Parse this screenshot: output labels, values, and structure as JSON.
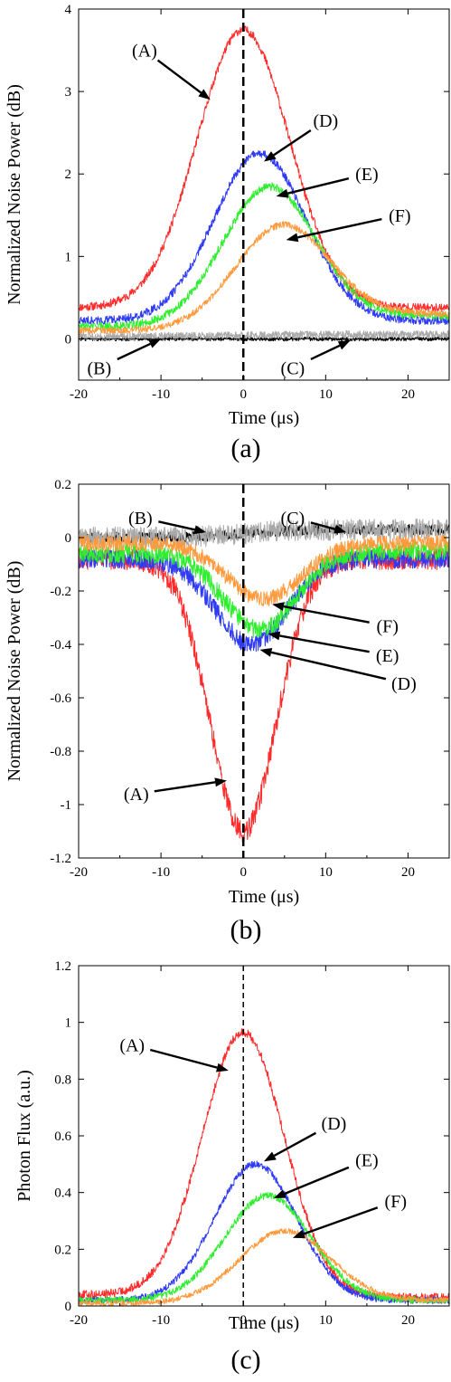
{
  "chart_data": [
    {
      "type": "line",
      "panel_label": "(a)",
      "xlabel": "Time (μs)",
      "ylabel": "Normalized Noise Power (dB)",
      "xlim": [
        -20,
        25
      ],
      "ylim": [
        -0.5,
        4
      ],
      "xticks": [
        -20,
        -10,
        0,
        10,
        20
      ],
      "yticks": [
        0,
        1,
        2,
        3,
        4
      ],
      "ytick_labels": [
        "0",
        "1",
        "2",
        "3",
        "4"
      ],
      "vline": 0,
      "series": [
        {
          "label": "(A)",
          "color": "#ff2a2a",
          "curve": {
            "kind": "gauss",
            "base_left": 0.38,
            "base_right": 0.38,
            "amp": 3.37,
            "center": 0,
            "sigma": 5.6,
            "noise": 0.05
          }
        },
        {
          "label": "(B)",
          "color": "#000000",
          "curve": {
            "kind": "gauss",
            "base_left": 0.0,
            "base_right": 0.0,
            "amp": 0,
            "center": 0,
            "sigma": 5,
            "noise": 0.025
          }
        },
        {
          "label": "(C)",
          "color": "#a8a8a8",
          "curve": {
            "kind": "gauss",
            "base_left": 0.03,
            "base_right": 0.05,
            "amp": 0,
            "center": 0,
            "sigma": 5,
            "noise": 0.05
          }
        },
        {
          "label": "(D)",
          "color": "#2e3af5",
          "curve": {
            "kind": "gauss",
            "base_left": 0.22,
            "base_right": 0.22,
            "amp": 2.03,
            "center": 2,
            "sigma": 5.6,
            "noise": 0.05
          }
        },
        {
          "label": "(E)",
          "color": "#2fee2f",
          "curve": {
            "kind": "gauss",
            "base_left": 0.15,
            "base_right": 0.28,
            "amp": 1.63,
            "center": 3,
            "sigma": 5.6,
            "noise": 0.05
          }
        },
        {
          "label": "(F)",
          "color": "#ff9a3c",
          "curve": {
            "kind": "gauss",
            "base_left": 0.1,
            "base_right": 0.3,
            "amp": 1.18,
            "center": 4.5,
            "sigma": 5.7,
            "noise": 0.04
          }
        }
      ],
      "annotations": [
        {
          "label": "(A)",
          "text_at": [
            -12,
            3.5
          ],
          "point_at": [
            -4,
            2.9
          ]
        },
        {
          "label": "(D)",
          "text_at": [
            10,
            2.65
          ],
          "point_at": [
            2.5,
            2.15
          ]
        },
        {
          "label": "(E)",
          "text_at": [
            15,
            2.0
          ],
          "point_at": [
            4,
            1.73
          ]
        },
        {
          "label": "(F)",
          "text_at": [
            19,
            1.5
          ],
          "point_at": [
            5.2,
            1.2
          ]
        },
        {
          "label": "(B)",
          "text_at": [
            -17.5,
            -0.35
          ],
          "point_at": [
            -10,
            0.0
          ]
        },
        {
          "label": "(C)",
          "text_at": [
            6,
            -0.35
          ],
          "point_at": [
            13,
            -0.02
          ]
        }
      ]
    },
    {
      "type": "line",
      "panel_label": "(b)",
      "xlabel": "Time (μs)",
      "ylabel": "Normalized Noise Power (dB)",
      "xlim": [
        -20,
        25
      ],
      "ylim": [
        -1.2,
        0.2
      ],
      "xticks": [
        -20,
        -10,
        0,
        10,
        20
      ],
      "yticks": [
        -1.2,
        -1,
        -0.8,
        -0.6,
        -0.4,
        -0.2,
        0,
        0.2
      ],
      "ytick_labels": [
        "-1.2",
        "-1",
        "-0.8",
        "-0.6",
        "-0.4",
        "-0.2",
        "0",
        "0.2"
      ],
      "vline": 0,
      "series": [
        {
          "label": "(A)",
          "color": "#ff2a2a",
          "curve": {
            "kind": "gauss",
            "base_left": -0.08,
            "base_right": -0.08,
            "amp": -1.02,
            "center": 0,
            "sigma": 4.0,
            "noise": 0.04
          }
        },
        {
          "label": "(B)",
          "color": "#000000",
          "curve": {
            "kind": "gauss",
            "base_left": 0.0,
            "base_right": 0.03,
            "amp": 0,
            "center": 0,
            "sigma": 5,
            "noise": 0.02
          }
        },
        {
          "label": "(C)",
          "color": "#a8a8a8",
          "curve": {
            "kind": "gauss",
            "base_left": 0.0,
            "base_right": 0.03,
            "amp": 0,
            "center": 0,
            "sigma": 5,
            "noise": 0.04
          }
        },
        {
          "label": "(D)",
          "color": "#2e3af5",
          "curve": {
            "kind": "gauss",
            "base_left": -0.08,
            "base_right": -0.08,
            "amp": -0.32,
            "center": 1,
            "sigma": 4.3,
            "noise": 0.035
          }
        },
        {
          "label": "(E)",
          "color": "#2fee2f",
          "curve": {
            "kind": "gauss",
            "base_left": -0.06,
            "base_right": -0.05,
            "amp": -0.29,
            "center": 2,
            "sigma": 4.3,
            "noise": 0.035
          }
        },
        {
          "label": "(F)",
          "color": "#ff9a3c",
          "curve": {
            "kind": "gauss",
            "base_left": -0.02,
            "base_right": -0.02,
            "amp": -0.21,
            "center": 2.5,
            "sigma": 4.5,
            "noise": 0.03
          }
        }
      ],
      "annotations": [
        {
          "label": "(B)",
          "text_at": [
            -12.5,
            0.075
          ],
          "point_at": [
            -4.5,
            0.02
          ]
        },
        {
          "label": "(C)",
          "text_at": [
            6,
            0.075
          ],
          "point_at": [
            12.5,
            0.02
          ]
        },
        {
          "label": "(F)",
          "text_at": [
            17.5,
            -0.33
          ],
          "point_at": [
            3.5,
            -0.25
          ]
        },
        {
          "label": "(E)",
          "text_at": [
            17.5,
            -0.44
          ],
          "point_at": [
            3.0,
            -0.36
          ]
        },
        {
          "label": "(D)",
          "text_at": [
            19.5,
            -0.545
          ],
          "point_at": [
            2.0,
            -0.42
          ]
        },
        {
          "label": "(A)",
          "text_at": [
            -13,
            -0.96
          ],
          "point_at": [
            -2.0,
            -0.91
          ]
        }
      ]
    },
    {
      "type": "line",
      "panel_label": "(c)",
      "xlabel": "Time (μs)",
      "ylabel": "Photon Flux (a.u.)",
      "xlim": [
        -20,
        25
      ],
      "ylim": [
        0,
        1.2
      ],
      "xticks": [
        -20,
        -10,
        0,
        10,
        20
      ],
      "yticks": [
        0,
        0.2,
        0.4,
        0.6,
        0.8,
        1,
        1.2
      ],
      "ytick_labels": [
        "0",
        "0.2",
        "0.4",
        "0.6",
        "0.8",
        "1",
        "1.2"
      ],
      "vline": 0,
      "series": [
        {
          "label": "(A)",
          "color": "#ff2a2a",
          "curve": {
            "kind": "gauss",
            "base_left": 0.04,
            "base_right": 0.03,
            "amp": 0.93,
            "center": 0,
            "sigma": 5.0,
            "noise": 0.015
          }
        },
        {
          "label": "(D)",
          "color": "#2e3af5",
          "curve": {
            "kind": "gauss",
            "base_left": 0.02,
            "base_right": 0.02,
            "amp": 0.48,
            "center": 1.5,
            "sigma": 5.0,
            "noise": 0.012
          }
        },
        {
          "label": "(E)",
          "color": "#2fee2f",
          "curve": {
            "kind": "gauss",
            "base_left": 0.02,
            "base_right": 0.02,
            "amp": 0.37,
            "center": 3,
            "sigma": 5.2,
            "noise": 0.012
          }
        },
        {
          "label": "(F)",
          "color": "#ff9a3c",
          "curve": {
            "kind": "gauss",
            "base_left": 0.01,
            "base_right": 0.02,
            "amp": 0.25,
            "center": 5,
            "sigma": 5.5,
            "noise": 0.01
          }
        }
      ],
      "annotations": [
        {
          "label": "(A)",
          "text_at": [
            -13.5,
            0.92
          ],
          "point_at": [
            -1.8,
            0.83
          ]
        },
        {
          "label": "(D)",
          "text_at": [
            11,
            0.645
          ],
          "point_at": [
            2.5,
            0.51
          ]
        },
        {
          "label": "(E)",
          "text_at": [
            15,
            0.515
          ],
          "point_at": [
            3.7,
            0.38
          ]
        },
        {
          "label": "(F)",
          "text_at": [
            18.5,
            0.37
          ],
          "point_at": [
            6.0,
            0.24
          ]
        }
      ]
    }
  ]
}
